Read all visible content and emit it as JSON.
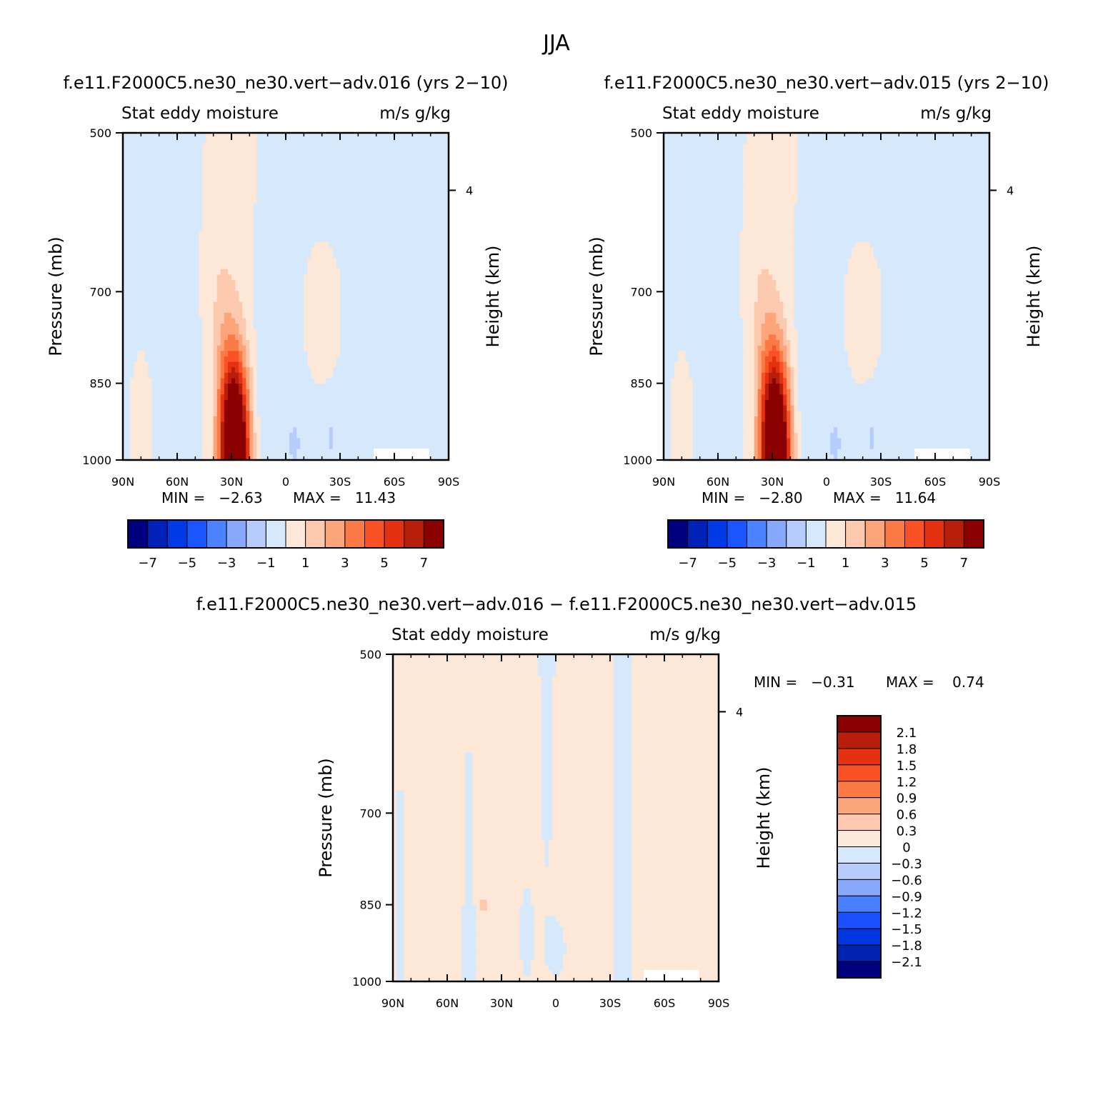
{
  "figure_title": "JJA",
  "colors": {
    "scale_main": [
      "#00007f",
      "#0020b8",
      "#0039e6",
      "#1a55ff",
      "#4a82ff",
      "#87a8fb",
      "#b5ccfc",
      "#d6e8fb",
      "#fde7d6",
      "#fcc8ae",
      "#fda57a",
      "#fb7a46",
      "#fa5226",
      "#e43111",
      "#b81f0a",
      "#8b0000"
    ],
    "scale_diff": [
      "#00007f",
      "#0024b0",
      "#0037e0",
      "#1a50ff",
      "#4a80ff",
      "#87a8fb",
      "#b8ccfb",
      "#d6e8fb",
      "#fde7d6",
      "#fcc8ae",
      "#fda57a",
      "#fb7a46",
      "#fa5226",
      "#e43111",
      "#b81f0a",
      "#8b0000"
    ],
    "axis": "#000000"
  },
  "chart_data": [
    {
      "type": "heatmap",
      "title": "f.e11.F2000C5.ne30_ne30.vert−adv.016 (yrs 2−10)",
      "top_left": "Stat eddy moisture",
      "top_right": "m/s g/kg",
      "ylabel": "Pressure (mb)",
      "ylabel_right": "Height (km)",
      "xticks": [
        "90N",
        "60N",
        "30N",
        "0",
        "30S",
        "60S",
        "90S"
      ],
      "yticks": [
        "500",
        "700",
        "850",
        "1000"
      ],
      "yticks_right": [
        "4"
      ],
      "ylim": [
        1000,
        500
      ],
      "min_text": "MIN =   −2.63",
      "max_text": "MAX =   11.43",
      "min": -2.63,
      "max": 11.43,
      "colorbar_labels": [
        "−7",
        "−5",
        "−3",
        "−1",
        "1",
        "3",
        "5",
        "7"
      ],
      "levels": [
        -7,
        -6,
        -5,
        -4,
        -3,
        -2,
        -1,
        0,
        1,
        2,
        3,
        4,
        5,
        6,
        7
      ]
    },
    {
      "type": "heatmap",
      "title": "f.e11.F2000C5.ne30_ne30.vert−adv.015 (yrs 2−10)",
      "top_left": "Stat eddy moisture",
      "top_right": "m/s g/kg",
      "ylabel": "Pressure (mb)",
      "ylabel_right": "Height (km)",
      "xticks": [
        "90N",
        "60N",
        "30N",
        "0",
        "30S",
        "60S",
        "90S"
      ],
      "yticks": [
        "500",
        "700",
        "850",
        "1000"
      ],
      "yticks_right": [
        "4"
      ],
      "ylim": [
        1000,
        500
      ],
      "min_text": "MIN =   −2.80",
      "max_text": "MAX =   11.64",
      "min": -2.8,
      "max": 11.64,
      "colorbar_labels": [
        "−7",
        "−5",
        "−3",
        "−1",
        "1",
        "3",
        "5",
        "7"
      ],
      "levels": [
        -7,
        -6,
        -5,
        -4,
        -3,
        -2,
        -1,
        0,
        1,
        2,
        3,
        4,
        5,
        6,
        7
      ]
    },
    {
      "type": "heatmap",
      "title": "f.e11.F2000C5.ne30_ne30.vert−adv.016 − f.e11.F2000C5.ne30_ne30.vert−adv.015",
      "top_left": "Stat eddy moisture",
      "top_right": "m/s g/kg",
      "ylabel": "Pressure (mb)",
      "ylabel_right": "Height (km)",
      "xticks": [
        "90N",
        "60N",
        "30N",
        "0",
        "30S",
        "60S",
        "90S"
      ],
      "yticks": [
        "500",
        "700",
        "850",
        "1000"
      ],
      "yticks_right": [
        "4"
      ],
      "ylim": [
        1000,
        500
      ],
      "min_text": "MIN =   −0.31",
      "max_text": "MAX =    0.74",
      "min": -0.31,
      "max": 0.74,
      "colorbar_labels": [
        "2.1",
        "1.8",
        "1.5",
        "1.2",
        "0.9",
        "0.6",
        "0.3",
        "0",
        "−0.3",
        "−0.6",
        "−0.9",
        "−1.2",
        "−1.5",
        "−1.8",
        "−2.1"
      ],
      "levels": [
        -2.1,
        -1.8,
        -1.5,
        -1.2,
        -0.9,
        -0.6,
        -0.3,
        0,
        0.3,
        0.6,
        0.9,
        1.2,
        1.5,
        1.8,
        2.1
      ]
    }
  ]
}
